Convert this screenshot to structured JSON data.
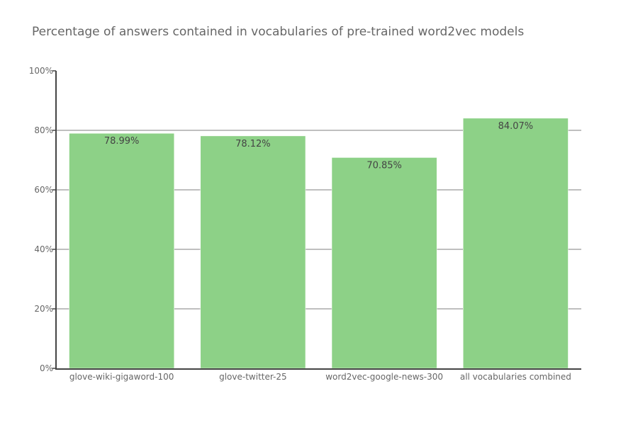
{
  "chart_data": {
    "type": "bar",
    "title": "Percentage of answers contained in vocabularies of pre-trained word2vec models",
    "xlabel": "",
    "ylabel": "",
    "categories": [
      "glove-wiki-gigaword-100",
      "glove-twitter-25",
      "word2vec-google-news-300",
      "all vocabularies combined"
    ],
    "values": [
      78.99,
      78.12,
      70.85,
      84.07
    ],
    "data_labels": [
      "78.99%",
      "78.12%",
      "70.85%",
      "84.07%"
    ],
    "ylim": [
      0,
      100
    ],
    "yticks": [
      0,
      20,
      40,
      60,
      80,
      100
    ],
    "ytick_labels": [
      "0%",
      "20%",
      "40%",
      "60%",
      "80%",
      "100%"
    ],
    "grid": true,
    "legend": "none",
    "colors": {
      "bar": "#8dd187",
      "grid": "#aaaaaa",
      "axis": "#444444"
    }
  }
}
